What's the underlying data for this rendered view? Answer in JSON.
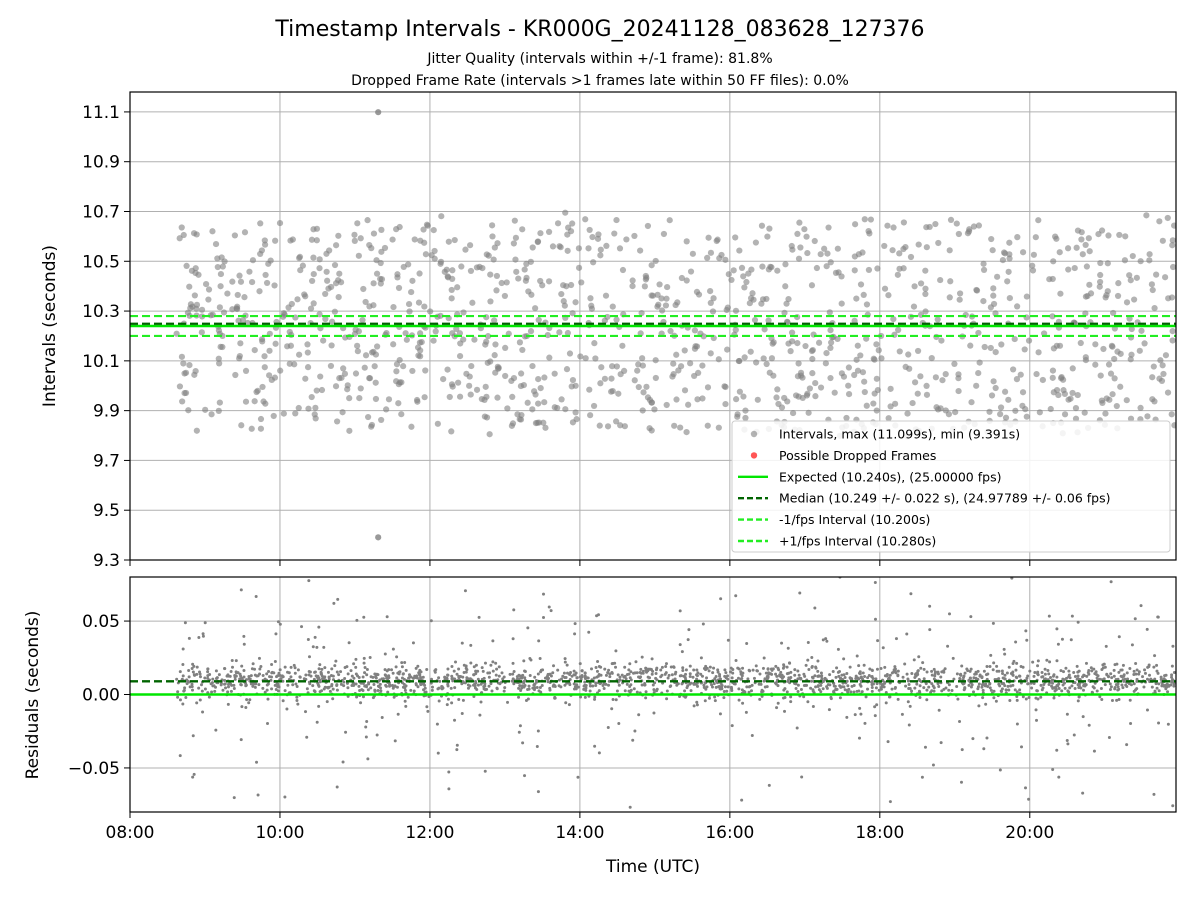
{
  "title": "Timestamp Intervals - KR000G_20241128_083628_127376",
  "subtitle_lines": [
    "Jitter Quality (intervals within +/-1 frame): 81.8%",
    "Dropped Frame Rate (intervals >1 frames late within 50 FF files): 0.0%"
  ],
  "colors": {
    "points": "#808080",
    "expected": "#00e600",
    "median": "#006400",
    "interval_lines": "#22ee22",
    "dropped": "#ff5555",
    "grid": "#b0b0b0"
  },
  "chart_data": [
    {
      "type": "scatter",
      "xlabel": "",
      "ylabel": "Intervals (seconds)",
      "x_unit": "time_utc_hours",
      "xlim": [
        8.0,
        21.95
      ],
      "ylim": [
        9.3,
        11.18
      ],
      "yticks": [
        9.3,
        9.5,
        9.7,
        9.9,
        10.1,
        10.3,
        10.5,
        10.7,
        10.9,
        11.1
      ],
      "ytick_labels": [
        "9.3",
        "9.5",
        "9.7",
        "9.9",
        "10.1",
        "10.3",
        "10.5",
        "10.7",
        "10.9",
        "11.1"
      ],
      "xticks": [
        8,
        10,
        12,
        14,
        16,
        18,
        20
      ],
      "grid": true,
      "legend_position": "lower-right",
      "points_summary": {
        "n": 1200,
        "x_range": [
          8.62,
          21.93
        ],
        "y_min": 9.391,
        "y_max": 11.099,
        "median": 10.249,
        "spread": 0.022
      },
      "extreme_points": [
        {
          "x": 11.31,
          "y": 11.099
        },
        {
          "x": 11.31,
          "y": 9.391
        }
      ],
      "hlines": [
        {
          "name": "Expected (10.240s), (25.00000 fps)",
          "y": 10.24,
          "style": "solid"
        },
        {
          "name": "Median (10.249 +/- 0.022 s), (24.97789 +/- 0.06 fps)",
          "y": 10.249,
          "style": "dashed"
        },
        {
          "name": "-1/fps Interval (10.200s)",
          "y": 10.2,
          "style": "dashed"
        },
        {
          "name": "+1/fps Interval (10.280s)",
          "y": 10.28,
          "style": "dashed"
        }
      ],
      "legend_entries": [
        {
          "label": "Intervals, max (11.099s), min (9.391s)",
          "kind": "point-gray"
        },
        {
          "label": "Possible Dropped Frames",
          "kind": "point-red"
        },
        {
          "label": "Expected (10.240s), (25.00000 fps)",
          "kind": "line-expected"
        },
        {
          "label": "Median (10.249 +/- 0.022 s), (24.97789 +/- 0.06 fps)",
          "kind": "line-median"
        },
        {
          "label": "-1/fps Interval (10.200s)",
          "kind": "line-interval"
        },
        {
          "label": "+1/fps Interval (10.280s)",
          "kind": "line-interval"
        }
      ]
    },
    {
      "type": "scatter",
      "xlabel": "Time (UTC)",
      "ylabel": "Residuals (seconds)",
      "x_unit": "time_utc_hours",
      "xlim": [
        8.0,
        21.95
      ],
      "ylim": [
        -0.08,
        0.08
      ],
      "yticks": [
        -0.05,
        0.0,
        0.05
      ],
      "ytick_labels": [
        "−0.05",
        "0.00",
        "0.05"
      ],
      "xticks": [
        8,
        10,
        12,
        14,
        16,
        18,
        20
      ],
      "xtick_labels": [
        "08:00",
        "10:00",
        "12:00",
        "14:00",
        "16:00",
        "18:00",
        "20:00"
      ],
      "grid": true,
      "points_summary": {
        "n": 2200,
        "x_range": [
          8.62,
          21.93
        ],
        "median": 0.009,
        "spread": 0.006
      },
      "hlines": [
        {
          "name": "Expected",
          "y": 0.0,
          "style": "solid"
        },
        {
          "name": "Median",
          "y": 0.009,
          "style": "dashed"
        }
      ]
    }
  ]
}
